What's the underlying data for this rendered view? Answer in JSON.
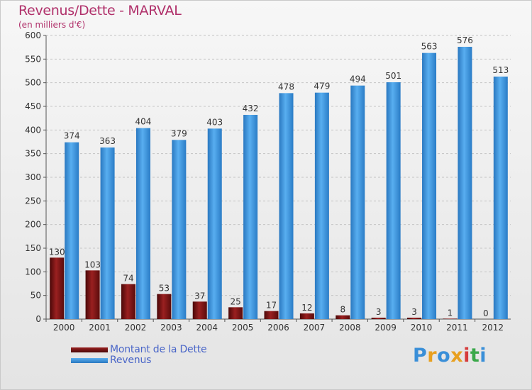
{
  "title": "Revenus/Dette - MARVAL",
  "subtitle": "(en milliers d'€)",
  "chart_data": {
    "type": "bar",
    "categories": [
      "2000",
      "2001",
      "2002",
      "2003",
      "2004",
      "2005",
      "2006",
      "2007",
      "2008",
      "2009",
      "2010",
      "2011",
      "2012"
    ],
    "series": [
      {
        "name": "Montant de la Dette",
        "values": [
          130,
          103,
          74,
          53,
          37,
          25,
          17,
          12,
          8,
          3,
          3,
          1,
          0
        ],
        "color": "#8a1a1a"
      },
      {
        "name": "Revenus",
        "values": [
          374,
          363,
          404,
          379,
          403,
          432,
          478,
          479,
          494,
          501,
          563,
          576,
          513
        ],
        "color": "#3a92dc"
      }
    ],
    "yticks": [
      0,
      50,
      100,
      150,
      200,
      250,
      300,
      350,
      400,
      450,
      500,
      550,
      600
    ],
    "ylim": [
      0,
      600
    ],
    "grid": true,
    "legend": "bottom-left"
  },
  "legend": {
    "debt_label": "Montant de la Dette",
    "revenue_label": "Revenus"
  },
  "logo": {
    "letters": [
      "P",
      "r",
      "o",
      "x",
      "i",
      "t",
      "i"
    ],
    "colors": [
      "#3a8fd8",
      "#e8a020",
      "#3a8fd8",
      "#e8a020",
      "#d63c3c",
      "#3aa84a",
      "#3a8fd8"
    ]
  }
}
